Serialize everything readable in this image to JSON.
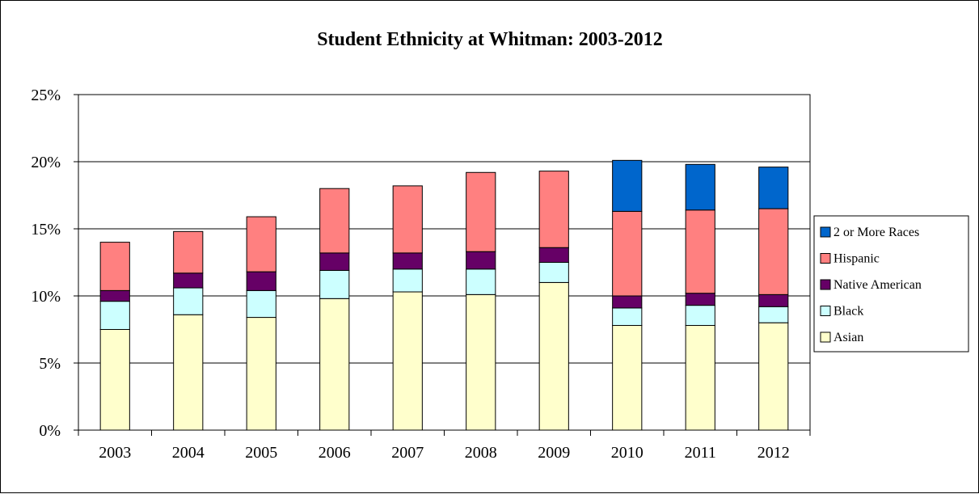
{
  "chart_data": {
    "type": "bar",
    "stacked": true,
    "title": "Student Ethnicity at Whitman: 2003-2012",
    "xlabel": "",
    "ylabel": "",
    "categories": [
      "2003",
      "2004",
      "2005",
      "2006",
      "2007",
      "2008",
      "2009",
      "2010",
      "2011",
      "2012"
    ],
    "ylim": [
      0,
      25
    ],
    "yticks": [
      0,
      5,
      10,
      15,
      20,
      25
    ],
    "ytick_labels": [
      "0%",
      "5%",
      "10%",
      "15%",
      "20%",
      "25%"
    ],
    "grid": true,
    "legend_position": "right",
    "series": [
      {
        "name": "Asian",
        "color": "#FFFFCC",
        "values": [
          7.5,
          8.6,
          8.4,
          9.8,
          10.3,
          10.1,
          11.0,
          7.8,
          7.8,
          8.0
        ]
      },
      {
        "name": "Black",
        "color": "#CCFFFF",
        "values": [
          2.1,
          2.0,
          2.0,
          2.1,
          1.7,
          1.9,
          1.5,
          1.3,
          1.5,
          1.2
        ]
      },
      {
        "name": "Native American",
        "color": "#660066",
        "values": [
          0.8,
          1.1,
          1.4,
          1.3,
          1.2,
          1.3,
          1.1,
          0.9,
          0.9,
          0.9
        ]
      },
      {
        "name": "Hispanic",
        "color": "#FF8080",
        "values": [
          3.6,
          3.1,
          4.1,
          4.8,
          5.0,
          5.9,
          5.7,
          6.3,
          6.2,
          6.4
        ]
      },
      {
        "name": "2 or More Races",
        "color": "#0066CC",
        "values": [
          0,
          0,
          0,
          0,
          0,
          0,
          0,
          3.8,
          3.4,
          3.1
        ]
      }
    ],
    "legend_order": [
      "2 or More Races",
      "Hispanic",
      "Native American",
      "Black",
      "Asian"
    ]
  }
}
